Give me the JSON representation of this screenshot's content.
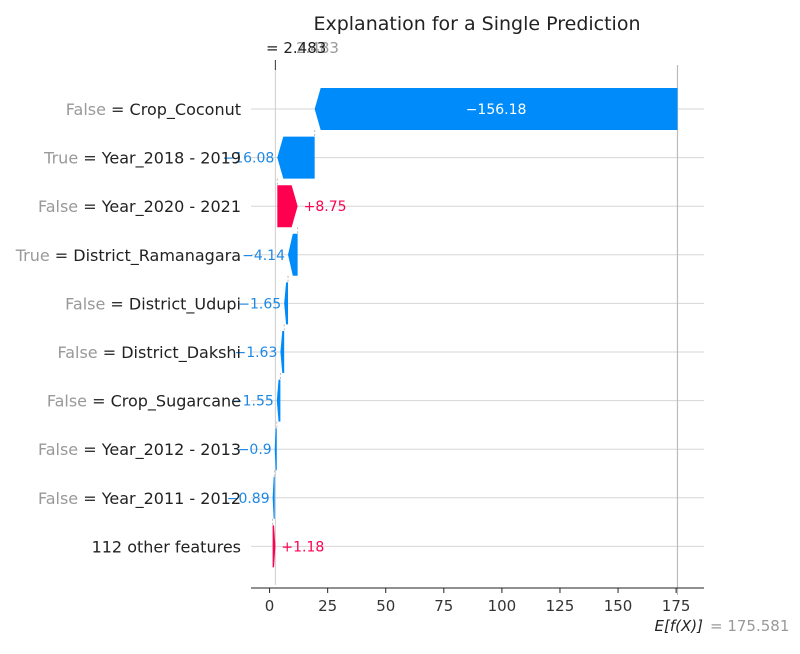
{
  "chart_data": {
    "type": "waterfall",
    "title": "Explanation for a Single Prediction",
    "fx_label": "= 2.483",
    "fx_label_ghost": "2.483",
    "fx_value": 2.483,
    "base_label": "E[f(X)]",
    "base_value_label": "= 175.581",
    "base_value": 175.581,
    "xlim": [
      -8,
      187
    ],
    "ticks": [
      "0",
      "25",
      "50",
      "75",
      "100",
      "125",
      "150",
      "175"
    ],
    "tick_values": [
      0,
      25,
      50,
      75,
      100,
      125,
      150,
      175
    ],
    "rows": [
      {
        "value_prefix": "False",
        "feature": "Crop_Coconut",
        "shap": -156.18,
        "label": "−156.18"
      },
      {
        "value_prefix": "True",
        "feature": "Year_2018 - 2019",
        "shap": -16.08,
        "label": "−16.08"
      },
      {
        "value_prefix": "False",
        "feature": "Year_2020 - 2021",
        "shap": 8.75,
        "label": "+8.75"
      },
      {
        "value_prefix": "True",
        "feature": "District_Ramanagara",
        "shap": -4.14,
        "label": "−4.14"
      },
      {
        "value_prefix": "False",
        "feature": "District_Udupi",
        "shap": -1.65,
        "label": "−1.65"
      },
      {
        "value_prefix": "False",
        "feature": "District_Dakshi",
        "shap": -1.63,
        "label": "−1.63"
      },
      {
        "value_prefix": "False",
        "feature": "Crop_Sugarcane",
        "shap": -1.55,
        "label": "−1.55"
      },
      {
        "value_prefix": "False",
        "feature": "Year_2012 - 2013",
        "shap": -0.9,
        "label": "−0.9"
      },
      {
        "value_prefix": "False",
        "feature": "Year_2011 - 2012",
        "shap": -0.89,
        "label": "−0.89"
      },
      {
        "value_prefix": "",
        "feature": "112 other features",
        "shap": 1.18,
        "label": "+1.18"
      }
    ],
    "colors": {
      "negative": "#008bfb",
      "positive": "#ff0051",
      "grid": "#cccccc",
      "text": "#333333",
      "muted": "#999999",
      "negative_text": "#1e88e5",
      "positive_text": "#ff0051",
      "inside_text": "#ffffff"
    },
    "grid": true
  }
}
